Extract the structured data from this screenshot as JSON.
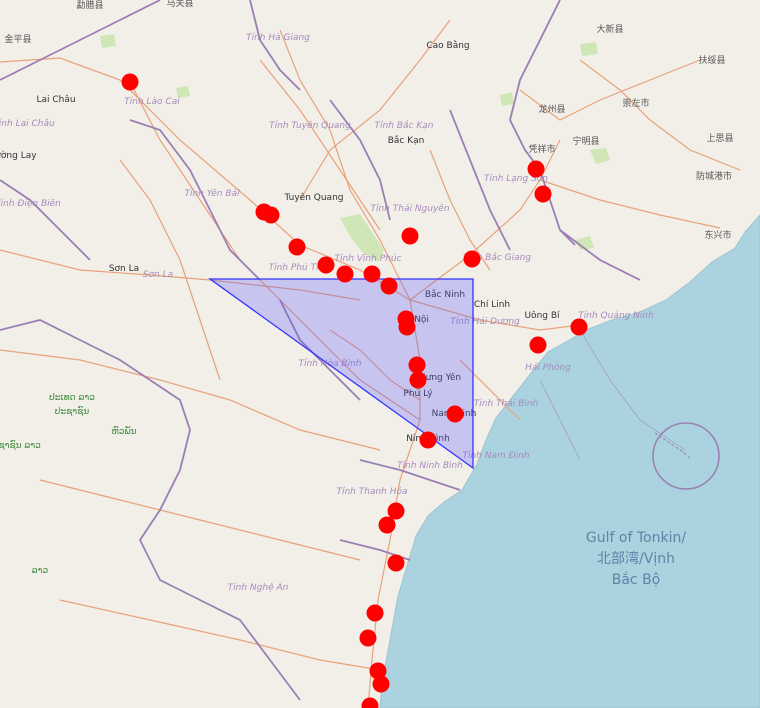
{
  "map": {
    "colors": {
      "land": "#f2efe9",
      "sea": "#aad3df",
      "forest": "#cfe6b7",
      "border": "#9b7fb3",
      "road": "#e8a27a",
      "marker": "#ff0000",
      "polygon_stroke": "#3333ff",
      "polygon_fill": "rgba(90,90,255,0.28)"
    },
    "sea_label": [
      "Gulf of Tonkin/",
      "北部湾/Vịnh",
      "Bắc Bộ"
    ],
    "labels": [
      {
        "text": "勐腊县",
        "kind": "cn"
      },
      {
        "text": "马关县",
        "kind": "cn"
      },
      {
        "text": "金平县",
        "kind": "cn"
      },
      {
        "text": "Tỉnh Hà Giang",
        "kind": "province"
      },
      {
        "text": "Cao Bằng",
        "kind": "city"
      },
      {
        "text": "大新县",
        "kind": "cn"
      },
      {
        "text": "扶绥县",
        "kind": "cn"
      },
      {
        "text": "崇左市",
        "kind": "cn"
      },
      {
        "text": "龙州县",
        "kind": "cn"
      },
      {
        "text": "宁明县",
        "kind": "cn"
      },
      {
        "text": "凭祥市",
        "kind": "cn"
      },
      {
        "text": "上思县",
        "kind": "cn"
      },
      {
        "text": "防城港市",
        "kind": "cn"
      },
      {
        "text": "东兴市",
        "kind": "cn"
      },
      {
        "text": "Lai Châu",
        "kind": "city"
      },
      {
        "text": "Tỉnh Lai Châu",
        "kind": "province"
      },
      {
        "text": "Tỉnh Lào Cai",
        "kind": "province"
      },
      {
        "text": "Mường Lay",
        "kind": "city"
      },
      {
        "text": "Tỉnh Tuyên Quang",
        "kind": "province"
      },
      {
        "text": "Tỉnh Bắc Kạn",
        "kind": "province"
      },
      {
        "text": "Bắc Kạn",
        "kind": "city"
      },
      {
        "text": "Tỉnh Lạng Sơn",
        "kind": "province"
      },
      {
        "text": "Tỉnh Điện Biên",
        "kind": "province"
      },
      {
        "text": "Tỉnh Yên Bái",
        "kind": "province"
      },
      {
        "text": "Tuyên Quang",
        "kind": "city"
      },
      {
        "text": "Tỉnh Thái Nguyên",
        "kind": "province"
      },
      {
        "text": "Sơn La",
        "kind": "city"
      },
      {
        "text": "Sơn La",
        "kind": "province"
      },
      {
        "text": "Tỉnh Phú Thọ",
        "kind": "province"
      },
      {
        "text": "Tỉnh Vĩnh Phúc",
        "kind": "province"
      },
      {
        "text": "Tỉnh Bắc Giang",
        "kind": "province"
      },
      {
        "text": "Bắc Ninh",
        "kind": "city"
      },
      {
        "text": "Chí Linh",
        "kind": "city"
      },
      {
        "text": "Hà Nội",
        "kind": "city"
      },
      {
        "text": "Tỉnh Hải Dương",
        "kind": "province"
      },
      {
        "text": "Uông Bí",
        "kind": "city"
      },
      {
        "text": "Tỉnh Quảng Ninh",
        "kind": "province"
      },
      {
        "text": "Hải Phòng",
        "kind": "province"
      },
      {
        "text": "Tỉnh Hòa Bình",
        "kind": "province"
      },
      {
        "text": "Hưng Yên",
        "kind": "city"
      },
      {
        "text": "Phủ Lý",
        "kind": "city"
      },
      {
        "text": "Nam Định",
        "kind": "city"
      },
      {
        "text": "Tỉnh Thái Bình",
        "kind": "province"
      },
      {
        "text": "Ninh Bình",
        "kind": "city"
      },
      {
        "text": "Tỉnh Nam Định",
        "kind": "province"
      },
      {
        "text": "Tỉnh Ninh Bình",
        "kind": "province"
      },
      {
        "text": "Tỉnh Thanh Hóa",
        "kind": "province"
      },
      {
        "text": "Tỉnh Nghệ An",
        "kind": "province"
      },
      {
        "text": "ປະເທດ ລາວ",
        "kind": "lao"
      },
      {
        "text": "ປະຊາຊົນ",
        "kind": "lao"
      },
      {
        "text": "ຫົວພັນ",
        "kind": "lao"
      },
      {
        "text": "ປະຊາຊົນ ລາວ",
        "kind": "lao"
      },
      {
        "text": "ລາວ",
        "kind": "lao"
      }
    ]
  }
}
